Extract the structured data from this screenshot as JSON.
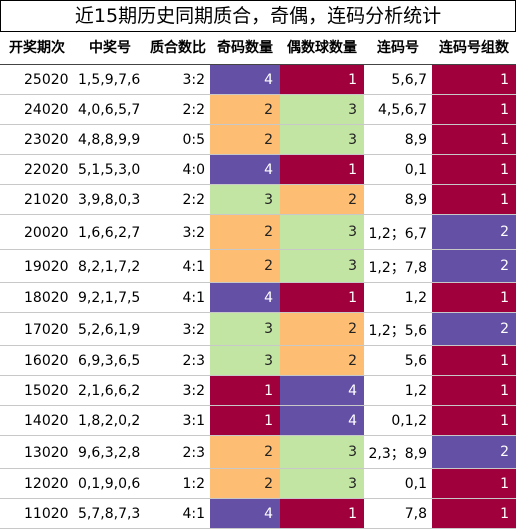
{
  "title": "近15期历史同期质合，奇偶，连码分析统计",
  "headers": [
    "开奖期次",
    "中奖号",
    "质合数比",
    "奇码数量",
    "偶数球数量",
    "连码号",
    "连码号组数"
  ],
  "colors": {
    "purple": "#6450a5",
    "crimson": "#a0003c",
    "orange": "#fdbd73",
    "green": "#c3e5a3"
  },
  "chart_data": {
    "type": "table",
    "columns": [
      "开奖期次",
      "中奖号",
      "质合数比",
      "奇码数量",
      "偶数球数量",
      "连码号",
      "连码号组数"
    ],
    "rows": [
      [
        "25020",
        "1,5,9,7,6",
        "3:2",
        "4",
        "1",
        "5,6,7",
        "1"
      ],
      [
        "24020",
        "4,0,6,5,7",
        "2:2",
        "2",
        "3",
        "4,5,6,7",
        "1"
      ],
      [
        "23020",
        "4,8,8,9,9",
        "0:5",
        "2",
        "3",
        "8,9",
        "1"
      ],
      [
        "22020",
        "5,1,5,3,0",
        "4:0",
        "4",
        "1",
        "0,1",
        "1"
      ],
      [
        "21020",
        "3,9,8,0,3",
        "2:2",
        "3",
        "2",
        "8,9",
        "1"
      ],
      [
        "20020",
        "1,6,6,2,7",
        "3:2",
        "2",
        "3",
        "1,2；6,7",
        "2"
      ],
      [
        "19020",
        "8,2,1,7,2",
        "4:1",
        "2",
        "3",
        "1,2；7,8",
        "2"
      ],
      [
        "18020",
        "9,2,1,7,5",
        "4:1",
        "4",
        "1",
        "1,2",
        "1"
      ],
      [
        "17020",
        "5,2,6,1,9",
        "3:2",
        "3",
        "2",
        "1,2；5,6",
        "2"
      ],
      [
        "16020",
        "6,9,3,6,5",
        "2:3",
        "3",
        "2",
        "5,6",
        "1"
      ],
      [
        "15020",
        "2,1,6,6,2",
        "3:2",
        "1",
        "4",
        "1,2",
        "1"
      ],
      [
        "14020",
        "1,8,2,0,2",
        "3:1",
        "1",
        "4",
        "0,1,2",
        "1"
      ],
      [
        "13020",
        "9,6,3,2,8",
        "2:3",
        "2",
        "3",
        "2,3；8,9",
        "2"
      ],
      [
        "12020",
        "0,1,9,0,6",
        "1:2",
        "2",
        "3",
        "0,1",
        "1"
      ],
      [
        "11020",
        "5,7,8,7,3",
        "4:1",
        "4",
        "1",
        "7,8",
        "1"
      ]
    ],
    "cell_colors": {
      "odd_count": [
        "purple",
        "orange",
        "orange",
        "purple",
        "green",
        "orange",
        "orange",
        "purple",
        "green",
        "green",
        "crimson",
        "crimson",
        "orange",
        "orange",
        "purple"
      ],
      "even_count": [
        "crimson",
        "green",
        "green",
        "crimson",
        "orange",
        "green",
        "green",
        "crimson",
        "orange",
        "orange",
        "purple",
        "purple",
        "green",
        "green",
        "crimson"
      ],
      "group_count": [
        "crimson",
        "crimson",
        "crimson",
        "crimson",
        "crimson",
        "purple",
        "purple",
        "crimson",
        "purple",
        "crimson",
        "crimson",
        "crimson",
        "purple",
        "crimson",
        "crimson"
      ]
    }
  }
}
